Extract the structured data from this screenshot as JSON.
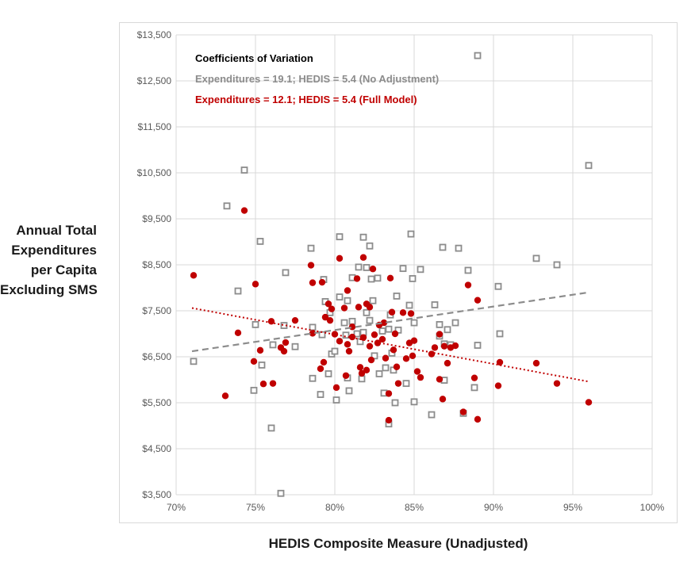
{
  "chart_data": {
    "type": "scatter",
    "xlabel": "HEDIS Composite Measure (Unadjusted)",
    "ylabel_lines": [
      "Annual Total",
      "Expenditures",
      "per Capita",
      "Excluding SMS"
    ],
    "xlim": [
      70,
      100
    ],
    "ylim": [
      3500,
      13500
    ],
    "x_ticks": [
      70,
      75,
      80,
      85,
      90,
      95,
      100
    ],
    "x_tick_labels": [
      "70%",
      "75%",
      "80%",
      "85%",
      "90%",
      "95%",
      "100%"
    ],
    "y_ticks": [
      3500,
      4500,
      5500,
      6500,
      7500,
      8500,
      9500,
      10500,
      11500,
      12500,
      13500
    ],
    "y_tick_labels": [
      "$3,500",
      "$4,500",
      "$5,500",
      "$6,500",
      "$7,500",
      "$8,500",
      "$9,500",
      "$10,500",
      "$11,500",
      "$12,500",
      "$13,500"
    ],
    "annotation": {
      "title": "Coefficients of Variation",
      "line1": "Expenditures = 19.1; HEDIS = 5.4 (No Adjustment)",
      "line2": "Expenditures = 12.1; HEDIS = 5.4 (Full Model)"
    },
    "colors": {
      "unadjusted": "#8c8c8c",
      "full_model": "#c00000",
      "annotation_title": "#000000"
    },
    "series": [
      {
        "marker": "hollow-square",
        "color": "#8c8c8c",
        "trendline": {
          "x": [
            71,
            96
          ],
          "y": [
            6620,
            7900
          ],
          "style": "dashed"
        },
        "points": [
          [
            71.1,
            6400
          ],
          [
            73.2,
            9780
          ],
          [
            73.9,
            7930
          ],
          [
            74.3,
            10560
          ],
          [
            74.9,
            5770
          ],
          [
            75.0,
            7200
          ],
          [
            75.3,
            9010
          ],
          [
            75.4,
            6320
          ],
          [
            76.0,
            4950
          ],
          [
            76.1,
            6760
          ],
          [
            76.6,
            3530
          ],
          [
            76.8,
            7180
          ],
          [
            76.9,
            8330
          ],
          [
            77.5,
            6720
          ],
          [
            78.5,
            8860
          ],
          [
            78.6,
            7140
          ],
          [
            78.6,
            6030
          ],
          [
            79.1,
            5680
          ],
          [
            79.2,
            6980
          ],
          [
            79.3,
            8180
          ],
          [
            79.4,
            7700
          ],
          [
            79.6,
            6130
          ],
          [
            79.7,
            7460
          ],
          [
            79.8,
            6560
          ],
          [
            80.0,
            6620
          ],
          [
            80.1,
            5560
          ],
          [
            80.3,
            9110
          ],
          [
            80.3,
            7800
          ],
          [
            80.6,
            7240
          ],
          [
            80.7,
            6970
          ],
          [
            80.8,
            7720
          ],
          [
            80.8,
            6040
          ],
          [
            80.9,
            5760
          ],
          [
            81.1,
            8220
          ],
          [
            81.1,
            7270
          ],
          [
            81.4,
            7000
          ],
          [
            81.5,
            8450
          ],
          [
            81.6,
            6830
          ],
          [
            81.7,
            6020
          ],
          [
            81.8,
            9100
          ],
          [
            81.8,
            7030
          ],
          [
            82.0,
            8440
          ],
          [
            82.0,
            7460
          ],
          [
            82.2,
            8910
          ],
          [
            82.2,
            7290
          ],
          [
            82.3,
            8190
          ],
          [
            82.4,
            7720
          ],
          [
            82.5,
            6520
          ],
          [
            82.7,
            8210
          ],
          [
            82.8,
            6130
          ],
          [
            83.0,
            7060
          ],
          [
            83.1,
            5710
          ],
          [
            83.2,
            6260
          ],
          [
            83.4,
            5040
          ],
          [
            83.4,
            7100
          ],
          [
            83.5,
            7410
          ],
          [
            83.6,
            6580
          ],
          [
            83.7,
            6210
          ],
          [
            83.8,
            5500
          ],
          [
            83.9,
            7820
          ],
          [
            84.0,
            7080
          ],
          [
            84.3,
            8420
          ],
          [
            84.5,
            5920
          ],
          [
            84.7,
            7620
          ],
          [
            84.8,
            9170
          ],
          [
            84.9,
            8200
          ],
          [
            85.0,
            7240
          ],
          [
            85.0,
            5520
          ],
          [
            85.4,
            8400
          ],
          [
            86.1,
            5240
          ],
          [
            86.3,
            7630
          ],
          [
            86.6,
            7200
          ],
          [
            86.6,
            6950
          ],
          [
            86.8,
            8880
          ],
          [
            86.9,
            6780
          ],
          [
            86.9,
            5990
          ],
          [
            87.1,
            7090
          ],
          [
            87.3,
            6760
          ],
          [
            87.6,
            7240
          ],
          [
            87.8,
            8860
          ],
          [
            88.1,
            5270
          ],
          [
            88.4,
            8380
          ],
          [
            88.8,
            5830
          ],
          [
            89.0,
            13050
          ],
          [
            89.0,
            6750
          ],
          [
            90.3,
            8030
          ],
          [
            90.4,
            7000
          ],
          [
            92.7,
            8640
          ],
          [
            94.0,
            8500
          ],
          [
            96.0,
            10660
          ]
        ]
      },
      {
        "marker": "filled-circle",
        "color": "#c00000",
        "trendline": {
          "x": [
            71,
            96
          ],
          "y": [
            7560,
            5960
          ],
          "style": "dotted"
        },
        "points": [
          [
            71.1,
            8270
          ],
          [
            73.1,
            5650
          ],
          [
            73.9,
            7020
          ],
          [
            74.3,
            9680
          ],
          [
            74.9,
            6400
          ],
          [
            75.0,
            8080
          ],
          [
            75.3,
            6640
          ],
          [
            75.5,
            5910
          ],
          [
            76.0,
            7270
          ],
          [
            76.1,
            5920
          ],
          [
            76.6,
            6700
          ],
          [
            76.8,
            6620
          ],
          [
            76.9,
            6810
          ],
          [
            77.5,
            7290
          ],
          [
            78.5,
            8490
          ],
          [
            78.6,
            7010
          ],
          [
            78.6,
            8110
          ],
          [
            79.1,
            6240
          ],
          [
            79.2,
            8120
          ],
          [
            79.3,
            6380
          ],
          [
            79.4,
            7360
          ],
          [
            79.6,
            7650
          ],
          [
            79.7,
            7290
          ],
          [
            79.8,
            7540
          ],
          [
            80.0,
            6990
          ],
          [
            80.1,
            5830
          ],
          [
            80.3,
            8640
          ],
          [
            80.3,
            6840
          ],
          [
            80.6,
            7560
          ],
          [
            80.7,
            6090
          ],
          [
            80.8,
            6770
          ],
          [
            80.8,
            7940
          ],
          [
            80.9,
            6620
          ],
          [
            81.1,
            6930
          ],
          [
            81.1,
            7150
          ],
          [
            81.4,
            8200
          ],
          [
            81.5,
            7580
          ],
          [
            81.6,
            6270
          ],
          [
            81.7,
            6140
          ],
          [
            81.8,
            6920
          ],
          [
            81.8,
            8660
          ],
          [
            82.0,
            7650
          ],
          [
            82.0,
            6210
          ],
          [
            82.2,
            7580
          ],
          [
            82.2,
            6730
          ],
          [
            82.3,
            6430
          ],
          [
            82.4,
            8410
          ],
          [
            82.5,
            6980
          ],
          [
            82.7,
            6800
          ],
          [
            82.8,
            7190
          ],
          [
            83.0,
            6880
          ],
          [
            83.1,
            7240
          ],
          [
            83.2,
            6470
          ],
          [
            83.4,
            5120
          ],
          [
            83.4,
            5700
          ],
          [
            83.5,
            8210
          ],
          [
            83.6,
            7470
          ],
          [
            83.7,
            6650
          ],
          [
            83.8,
            7000
          ],
          [
            83.9,
            6280
          ],
          [
            84.0,
            5920
          ],
          [
            84.3,
            7460
          ],
          [
            84.5,
            6460
          ],
          [
            84.7,
            6800
          ],
          [
            84.8,
            7440
          ],
          [
            84.9,
            6520
          ],
          [
            85.0,
            6850
          ],
          [
            85.2,
            6180
          ],
          [
            85.4,
            6050
          ],
          [
            86.1,
            6560
          ],
          [
            86.3,
            6700
          ],
          [
            86.6,
            6990
          ],
          [
            86.6,
            6010
          ],
          [
            86.8,
            5580
          ],
          [
            86.9,
            6730
          ],
          [
            87.1,
            6360
          ],
          [
            87.3,
            6700
          ],
          [
            87.6,
            6740
          ],
          [
            88.1,
            5300
          ],
          [
            88.4,
            8060
          ],
          [
            88.8,
            6040
          ],
          [
            89.0,
            7730
          ],
          [
            89.0,
            5140
          ],
          [
            90.3,
            5870
          ],
          [
            90.4,
            6380
          ],
          [
            92.7,
            6360
          ],
          [
            94.0,
            5920
          ],
          [
            96.0,
            5510
          ]
        ]
      }
    ]
  }
}
